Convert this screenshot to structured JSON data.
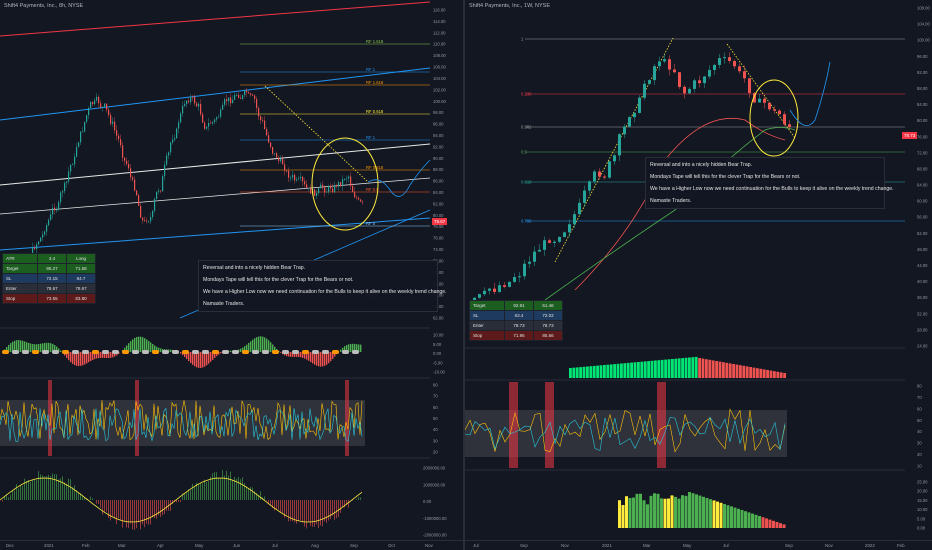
{
  "left": {
    "title": "Shift4 Payments, Inc., 8h, NYSE",
    "annotation": [
      "Reversal and into a nicely hidden Bear Trap.",
      "Mondays Tape will tell this for the clever Trap for the Bears or not.",
      "We have a Higher Low now we need continuation for the Bulls to keep it alive on the weekly trend change.",
      "Namaste Traders."
    ],
    "current_price": "78.67",
    "price_ticks": [
      "116.00",
      "114.00",
      "112.00",
      "110.00",
      "108.00",
      "106.00",
      "104.00",
      "102.00",
      "100.00",
      "98.00",
      "96.00",
      "94.00",
      "92.00",
      "90.00",
      "88.00",
      "86.00",
      "84.00",
      "82.00",
      "80.00",
      "78.00",
      "76.00",
      "74.00",
      "72.00",
      "70.00",
      "68.00",
      "66.00",
      "64.00",
      "62.00"
    ],
    "fib_labels": [
      "RF 1.618",
      "RF 1",
      "RF 1.618",
      "RF 0.618",
      "RF 1",
      "RF 0.618",
      "RF 0.5",
      "RF 0",
      "RF 1.5"
    ],
    "indicator_ticks_1": [
      "10.00",
      "5.00",
      "0.00",
      "-5.00",
      "-10.00"
    ],
    "indicator_ticks_2": [
      "80",
      "70",
      "60",
      "50",
      "40",
      "30",
      "20"
    ],
    "indicator_ticks_3": [
      "2000000.00",
      "1000000.00",
      "0.00",
      "-1000000.00",
      "-2000000.00"
    ],
    "table": {
      "rows": [
        {
          "label": "ATR",
          "v1": "3.4",
          "v2": "Long"
        },
        {
          "label": "Target",
          "v1": "85.27",
          "v2": "71.58"
        },
        {
          "label": "SL",
          "v1": "72.15",
          "v2": "84.7"
        },
        {
          "label": "Enter",
          "v1": "78.67",
          "v2": "78.67"
        },
        {
          "label": "Stop",
          "v1": "73.55",
          "v2": "83.80"
        }
      ]
    },
    "x_ticks": [
      "Dec",
      "2021",
      "Feb",
      "Mar",
      "Apr",
      "May",
      "Jun",
      "Jul",
      "Aug",
      "Sep",
      "Oct",
      "Nov"
    ]
  },
  "right": {
    "title": "Shift4 Payments, Inc., 1W, NYSE",
    "annotation": [
      "Reversal and into a nicely hidden Bear Trap.",
      "Mondays Tape will tell this for the clever Trap for the Bears or not.",
      "We have a Higher Low now we need continuation for the Bulls to keep it alive on the weekly trend change.",
      "Namaste Traders."
    ],
    "current_price": "78.73",
    "price_ticks": [
      "108.00",
      "104.00",
      "100.00",
      "96.00",
      "92.00",
      "88.00",
      "84.00",
      "80.00",
      "76.00",
      "72.00",
      "68.00",
      "64.00",
      "60.00",
      "56.00",
      "52.00",
      "48.00",
      "44.00",
      "40.00",
      "36.00",
      "32.00",
      "28.00",
      "24.00"
    ],
    "fib_labels": [
      "1",
      "0.236",
      "0.382",
      "0.5",
      "0.618",
      "0.786"
    ],
    "indicator_ticks_1": [
      "80",
      "70",
      "60",
      "50",
      "40",
      "30",
      "20",
      "10"
    ],
    "indicator_ticks_2": [
      "25.00",
      "20.00",
      "15.00",
      "10.00",
      "5.00",
      "0.00"
    ],
    "table": {
      "rows": [
        {
          "label": "Target",
          "v1": "92.91",
          "v2": "61.46"
        },
        {
          "label": "SL",
          "v1": "63.4",
          "v2": "72.02"
        },
        {
          "label": "Enter",
          "v1": "78.73",
          "v2": "78.73"
        },
        {
          "label": "Stop",
          "v1": "71.95",
          "v2": "85.56"
        }
      ]
    },
    "x_ticks": [
      "Jul",
      "Sep",
      "Nov",
      "2021",
      "Mar",
      "May",
      "Jul",
      "Sep",
      "Nov",
      "2022",
      "Feb"
    ]
  },
  "colors": {
    "background": "#131722",
    "bull": "#26a69a",
    "bear": "#ef5350",
    "highlight": "#ffeb3b"
  }
}
